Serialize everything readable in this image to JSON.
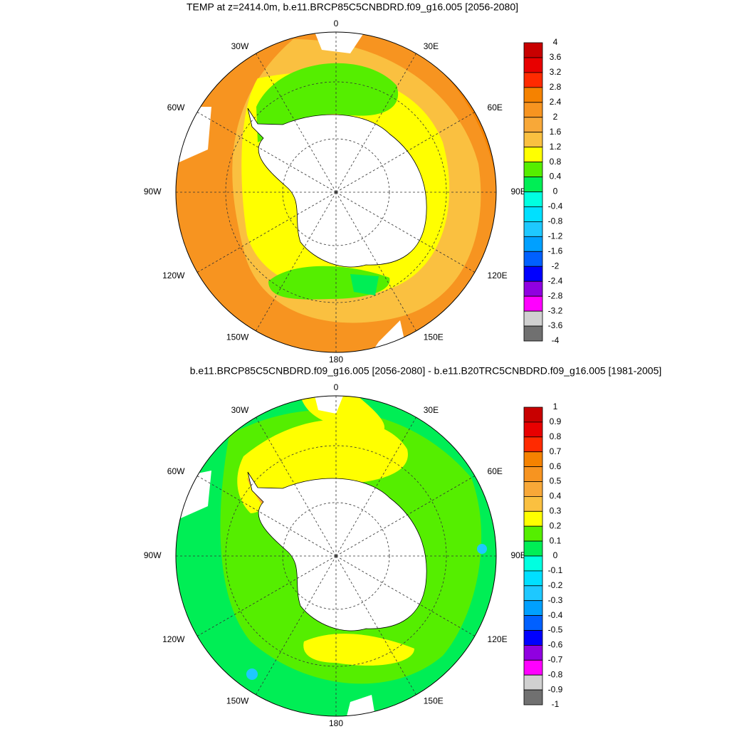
{
  "maps": [
    {
      "title": "TEMP at z=2414.0m, b.e11.BRCP85C5CNBDRD.f09_g16.005 [2056-2080]",
      "lon_labels": [
        "0",
        "30E",
        "60E",
        "90E",
        "120E",
        "150E",
        "180",
        "150W",
        "120W",
        "90W",
        "60W",
        "30W"
      ],
      "colorbar": {
        "levels": [
          4,
          3.6,
          3.2,
          2.8,
          2.4,
          2,
          1.6,
          1.2,
          0.8,
          0.4,
          0,
          -0.4,
          -0.8,
          -1.2,
          -1.6,
          -2,
          -2.4,
          -2.8,
          -3.2,
          -3.6,
          -4
        ],
        "colors": [
          "#c80000",
          "#e80000",
          "#ff2a00",
          "#f58200",
          "#f79420",
          "#f8a838",
          "#fac040",
          "#ffff00",
          "#55ee00",
          "#00ee55",
          "#00ffe0",
          "#00e0ff",
          "#1ec8ff",
          "#00a0ff",
          "#0060ff",
          "#0000ff",
          "#9000e0",
          "#ff00ff",
          "#d0d0d0",
          "#707070"
        ]
      }
    },
    {
      "title": "b.e11.BRCP85C5CNBDRD.f09_g16.005 [2056-2080] - b.e11.B20TRC5CNBDRD.f09_g16.005 [1981-2005]",
      "lon_labels": [
        "0",
        "30E",
        "60E",
        "90E",
        "120E",
        "150E",
        "180",
        "150W",
        "120W",
        "90W",
        "60W",
        "30W"
      ],
      "colorbar": {
        "levels": [
          1,
          0.9,
          0.8,
          0.7,
          0.6,
          0.5,
          0.4,
          0.3,
          0.2,
          0.1,
          0,
          -0.1,
          -0.2,
          -0.3,
          -0.4,
          -0.5,
          -0.6,
          -0.7,
          -0.8,
          -0.9,
          -1
        ],
        "colors": [
          "#c80000",
          "#e80000",
          "#ff2a00",
          "#f58200",
          "#f79420",
          "#f8a838",
          "#fac040",
          "#ffff00",
          "#55ee00",
          "#00ee55",
          "#00ffe0",
          "#00e0ff",
          "#1ec8ff",
          "#00a0ff",
          "#0060ff",
          "#0000ff",
          "#9000e0",
          "#ff00ff",
          "#d0d0d0",
          "#707070"
        ]
      }
    }
  ]
}
